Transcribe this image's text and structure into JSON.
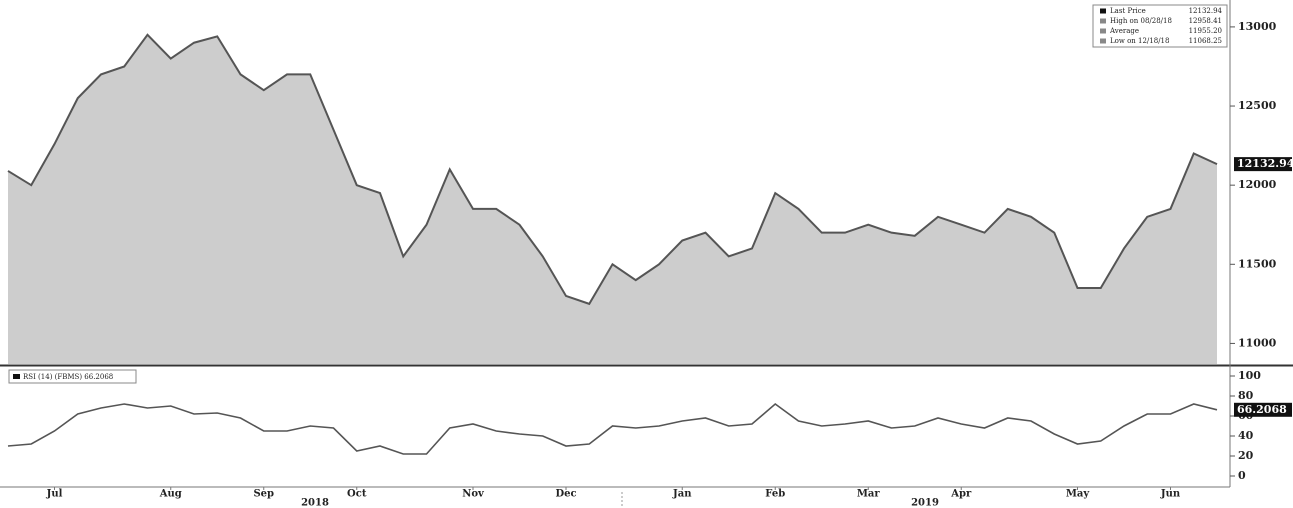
{
  "chart_data": [
    {
      "type": "area",
      "color": "#cdcdcd",
      "line_color": "#555555",
      "values": [
        12090,
        12000,
        12260,
        12550,
        12700,
        12750,
        12950,
        12800,
        12900,
        12940,
        12700,
        12600,
        12700,
        12700,
        12350,
        12000,
        11950,
        11550,
        11750,
        12100,
        11850,
        11850,
        11750,
        11550,
        11300,
        11250,
        11500,
        11400,
        11500,
        11650,
        11700,
        11550,
        11600,
        11950,
        11850,
        11700,
        11700,
        11750,
        11700,
        11680,
        11800,
        11750,
        11700,
        11850,
        11800,
        11700,
        11350,
        11350,
        11600,
        11800,
        11850,
        12200,
        12132.94
      ],
      "ylim": [
        10870,
        13170
      ],
      "yticks": [
        11000,
        11500,
        12000,
        12500,
        13000
      ],
      "legend": [
        {
          "label": "Last Price",
          "value": "12132.94"
        },
        {
          "label": "High on 08/28/18",
          "value": "12958.41"
        },
        {
          "label": "Average",
          "value": "11955.20"
        },
        {
          "label": "Low on 12/18/18",
          "value": "11068.25"
        }
      ]
    },
    {
      "type": "line",
      "color": "#555555",
      "label": "RSI (14) (FBMS) 66.2068",
      "categories": [
        null,
        null,
        "Jul",
        null,
        null,
        null,
        null,
        "Aug",
        null,
        null,
        null,
        "Sep",
        null,
        null,
        null,
        "Oct",
        null,
        null,
        null,
        null,
        "Nov",
        null,
        null,
        null,
        "Dec",
        null,
        null,
        null,
        null,
        "Jan",
        null,
        null,
        null,
        "Feb",
        null,
        null,
        null,
        "Mar",
        null,
        null,
        null,
        "Apr",
        null,
        null,
        null,
        null,
        "May",
        null,
        null,
        null,
        "Jun",
        null,
        null
      ],
      "values": [
        30,
        32,
        45,
        62,
        68,
        72,
        68,
        70,
        62,
        63,
        58,
        45,
        45,
        50,
        48,
        25,
        30,
        22,
        22,
        48,
        52,
        45,
        42,
        40,
        30,
        32,
        50,
        48,
        50,
        55,
        58,
        50,
        52,
        72,
        55,
        50,
        52,
        55,
        48,
        50,
        58,
        52,
        48,
        58,
        55,
        42,
        32,
        35,
        50,
        62,
        62,
        72,
        66.2068
      ],
      "ylim": [
        -9,
        109
      ],
      "yticks": [
        0,
        20,
        40,
        60,
        80,
        100
      ],
      "annotations": [
        "2018",
        "2019"
      ]
    }
  ]
}
